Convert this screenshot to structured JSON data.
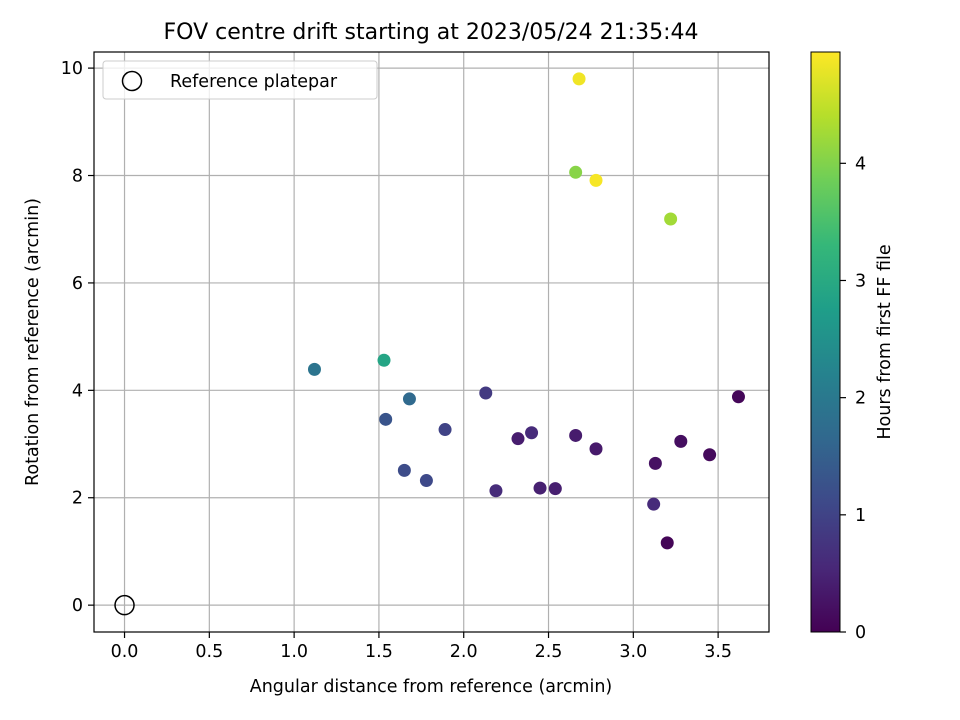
{
  "chart_data": {
    "type": "scatter",
    "title": "FOV centre drift starting at 2023/05/24 21:35:44",
    "xlabel": "Angular distance from reference (arcmin)",
    "ylabel": "Rotation from reference (arcmin)",
    "xlim": [
      -0.18,
      3.8
    ],
    "ylim": [
      -0.5,
      10.3
    ],
    "xticks": [
      0.0,
      0.5,
      1.0,
      1.5,
      2.0,
      2.5,
      3.0,
      3.5
    ],
    "xtick_labels": [
      "0.0",
      "0.5",
      "1.0",
      "1.5",
      "2.0",
      "2.5",
      "3.0",
      "3.5"
    ],
    "yticks": [
      0,
      2,
      4,
      6,
      8,
      10
    ],
    "ytick_labels": [
      "0",
      "2",
      "4",
      "6",
      "8",
      "10"
    ],
    "grid": true,
    "legend": {
      "location": "upper-left",
      "entries": [
        {
          "label": "Reference platepar",
          "marker": "open-circle",
          "color": "#000000"
        }
      ]
    },
    "reference_point": {
      "x": 0.0,
      "y": 0.0
    },
    "colorbar": {
      "label": "Hours from first FF file",
      "colormap": "viridis",
      "range": [
        0,
        4.95
      ],
      "ticks": [
        0,
        1,
        2,
        3,
        4
      ],
      "tick_labels": [
        "0",
        "1",
        "2",
        "3",
        "4"
      ]
    },
    "points": [
      {
        "x": 3.2,
        "y": 1.16,
        "hours": 0.05
      },
      {
        "x": 3.62,
        "y": 3.88,
        "hours": 0.08
      },
      {
        "x": 3.45,
        "y": 2.8,
        "hours": 0.12
      },
      {
        "x": 3.28,
        "y": 3.05,
        "hours": 0.18
      },
      {
        "x": 3.13,
        "y": 2.64,
        "hours": 0.22
      },
      {
        "x": 2.78,
        "y": 2.91,
        "hours": 0.35
      },
      {
        "x": 2.66,
        "y": 3.16,
        "hours": 0.38
      },
      {
        "x": 2.32,
        "y": 3.1,
        "hours": 0.4
      },
      {
        "x": 2.54,
        "y": 2.17,
        "hours": 0.42
      },
      {
        "x": 2.45,
        "y": 2.18,
        "hours": 0.45
      },
      {
        "x": 3.12,
        "y": 1.88,
        "hours": 0.6
      },
      {
        "x": 2.4,
        "y": 3.21,
        "hours": 0.6
      },
      {
        "x": 2.19,
        "y": 2.13,
        "hours": 0.62
      },
      {
        "x": 2.13,
        "y": 3.95,
        "hours": 0.85
      },
      {
        "x": 1.89,
        "y": 3.27,
        "hours": 1.0
      },
      {
        "x": 1.78,
        "y": 2.32,
        "hours": 1.1
      },
      {
        "x": 1.65,
        "y": 2.51,
        "hours": 1.15
      },
      {
        "x": 1.54,
        "y": 3.46,
        "hours": 1.3
      },
      {
        "x": 1.68,
        "y": 3.84,
        "hours": 1.7
      },
      {
        "x": 1.12,
        "y": 4.39,
        "hours": 1.9
      },
      {
        "x": 1.53,
        "y": 4.56,
        "hours": 2.9
      },
      {
        "x": 2.66,
        "y": 8.06,
        "hours": 4.05
      },
      {
        "x": 3.22,
        "y": 7.19,
        "hours": 4.25
      },
      {
        "x": 2.68,
        "y": 9.8,
        "hours": 4.85
      },
      {
        "x": 2.78,
        "y": 7.91,
        "hours": 4.9
      }
    ]
  }
}
